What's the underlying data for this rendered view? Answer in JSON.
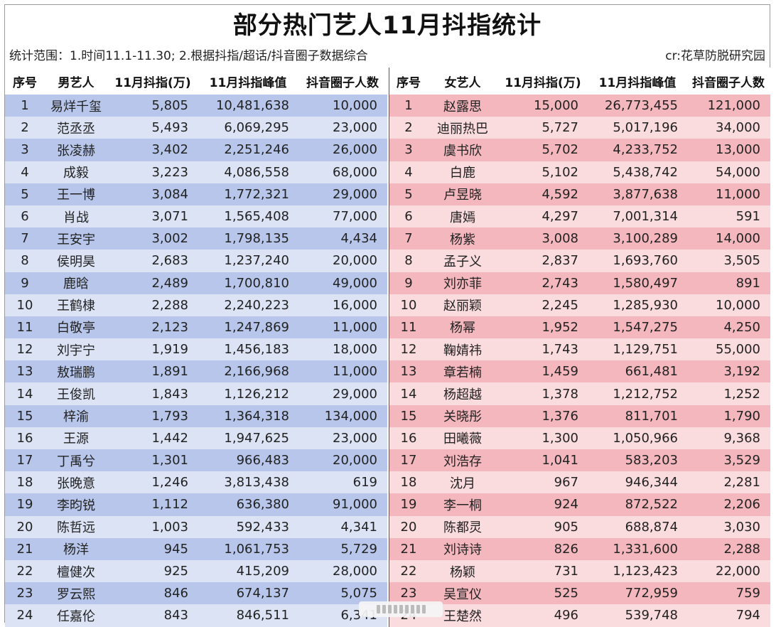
{
  "title": "部分热门艺人11月抖指统计",
  "scope_note": "统计范围：1.时间11.1-11.30; 2.根据抖指/超话/抖音圈子数据综合",
  "credit": "cr:花草防脱研究园",
  "male": {
    "headers": [
      "序号",
      "男艺人",
      "11月抖指(万)",
      "11月抖指峰值",
      "抖音圈子人数"
    ],
    "rows": [
      [
        "1",
        "易烊千玺",
        "5,805",
        "10,481,638",
        "10,000"
      ],
      [
        "2",
        "范丞丞",
        "5,493",
        "6,069,295",
        "23,000"
      ],
      [
        "3",
        "张凌赫",
        "3,402",
        "2,251,246",
        "26,000"
      ],
      [
        "4",
        "成毅",
        "3,223",
        "4,086,558",
        "68,000"
      ],
      [
        "5",
        "王一博",
        "3,084",
        "1,772,321",
        "29,000"
      ],
      [
        "6",
        "肖战",
        "3,071",
        "1,565,408",
        "77,000"
      ],
      [
        "7",
        "王安宇",
        "3,002",
        "1,798,135",
        "4,434"
      ],
      [
        "8",
        "侯明昊",
        "2,683",
        "1,237,240",
        "20,000"
      ],
      [
        "9",
        "鹿晗",
        "2,489",
        "1,700,810",
        "49,000"
      ],
      [
        "10",
        "王鹤棣",
        "2,288",
        "2,240,223",
        "16,000"
      ],
      [
        "11",
        "白敬亭",
        "2,123",
        "1,247,869",
        "11,000"
      ],
      [
        "12",
        "刘宇宁",
        "1,919",
        "1,456,183",
        "18,000"
      ],
      [
        "13",
        "敖瑞鹏",
        "1,891",
        "2,166,968",
        "11,000"
      ],
      [
        "14",
        "王俊凯",
        "1,843",
        "1,126,212",
        "29,000"
      ],
      [
        "15",
        "梓渝",
        "1,793",
        "1,364,318",
        "134,000"
      ],
      [
        "16",
        "王源",
        "1,442",
        "1,947,625",
        "23,000"
      ],
      [
        "17",
        "丁禹兮",
        "1,301",
        "966,483",
        "20,000"
      ],
      [
        "18",
        "张晚意",
        "1,246",
        "3,813,438",
        "619"
      ],
      [
        "19",
        "李昀锐",
        "1,112",
        "636,380",
        "91,000"
      ],
      [
        "20",
        "陈哲远",
        "1,003",
        "592,433",
        "4,341"
      ],
      [
        "21",
        "杨洋",
        "945",
        "1,061,753",
        "5,729"
      ],
      [
        "22",
        "檀健次",
        "925",
        "415,209",
        "28,000"
      ],
      [
        "23",
        "罗云熙",
        "846",
        "674,137",
        "5,075"
      ],
      [
        "24",
        "任嘉伦",
        "843",
        "846,511",
        "6,341"
      ]
    ]
  },
  "female": {
    "headers": [
      "序号",
      "女艺人",
      "11月抖指(万)",
      "11月抖指峰值",
      "抖音圈子人数"
    ],
    "rows": [
      [
        "1",
        "赵露思",
        "15,000",
        "26,773,455",
        "121,000"
      ],
      [
        "2",
        "迪丽热巴",
        "5,727",
        "5,017,196",
        "34,000"
      ],
      [
        "3",
        "虞书欣",
        "5,702",
        "4,233,752",
        "13,000"
      ],
      [
        "4",
        "白鹿",
        "5,102",
        "5,438,742",
        "54,000"
      ],
      [
        "5",
        "卢昱晓",
        "4,592",
        "3,877,638",
        "11,000"
      ],
      [
        "6",
        "唐嫣",
        "4,297",
        "7,001,314",
        "591"
      ],
      [
        "7",
        "杨紫",
        "3,008",
        "3,100,289",
        "14,000"
      ],
      [
        "8",
        "孟子义",
        "2,837",
        "1,693,760",
        "3,505"
      ],
      [
        "9",
        "刘亦菲",
        "2,743",
        "1,580,497",
        "891"
      ],
      [
        "10",
        "赵丽颖",
        "2,245",
        "1,285,930",
        "10,000"
      ],
      [
        "11",
        "杨幂",
        "1,952",
        "1,547,275",
        "4,250"
      ],
      [
        "12",
        "鞠婧祎",
        "1,743",
        "1,129,751",
        "55,000"
      ],
      [
        "13",
        "章若楠",
        "1,459",
        "661,481",
        "3,192"
      ],
      [
        "14",
        "杨超越",
        "1,378",
        "1,212,752",
        "1,252"
      ],
      [
        "15",
        "关晓彤",
        "1,376",
        "811,701",
        "1,790"
      ],
      [
        "16",
        "田曦薇",
        "1,300",
        "1,050,966",
        "9,368"
      ],
      [
        "17",
        "刘浩存",
        "1,041",
        "583,203",
        "3,529"
      ],
      [
        "18",
        "沈月",
        "967",
        "946,344",
        "2,281"
      ],
      [
        "19",
        "李一桐",
        "924",
        "872,522",
        "2,206"
      ],
      [
        "20",
        "陈都灵",
        "905",
        "688,874",
        "3,030"
      ],
      [
        "21",
        "刘诗诗",
        "826",
        "1,331,600",
        "2,288"
      ],
      [
        "22",
        "杨颖",
        "731",
        "1,123,423",
        "22,000"
      ],
      [
        "23",
        "吴宣仪",
        "525",
        "772,959",
        "759"
      ],
      [
        "24",
        "王楚然",
        "496",
        "539,748",
        "794"
      ]
    ]
  }
}
